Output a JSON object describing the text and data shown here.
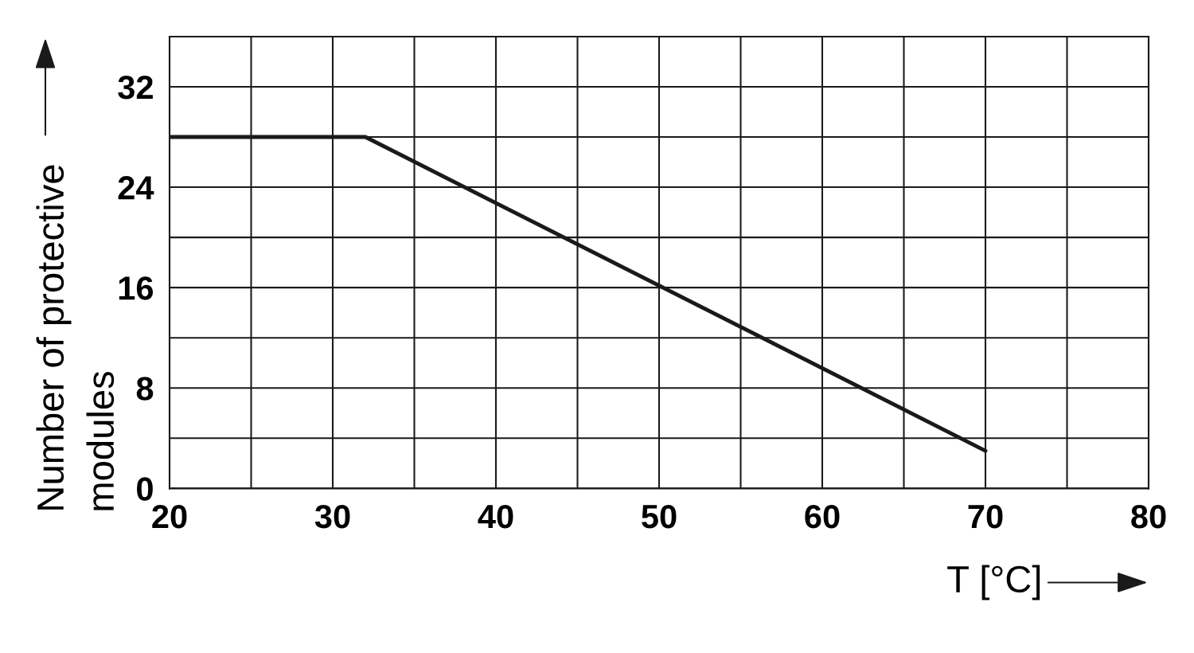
{
  "chart_data": {
    "type": "line",
    "xlabel": "T [°C]",
    "ylabel": "Number of protective modules",
    "x": [
      20,
      32,
      70
    ],
    "series": [
      {
        "color": "#1a1a1a",
        "values": [
          28,
          28,
          3
        ]
      }
    ],
    "xlim": [
      20,
      80
    ],
    "ylim": [
      0,
      36
    ],
    "xticks": [
      20,
      {
        "value": 25,
        "label": null
      },
      30,
      {
        "value": 35,
        "label": null
      },
      40,
      {
        "value": 45,
        "label": null
      },
      50,
      {
        "value": 55,
        "label": null
      },
      60,
      {
        "value": 65,
        "label": null
      },
      70,
      {
        "value": 75,
        "label": null
      },
      80
    ],
    "yticks": [
      0,
      {
        "value": 4,
        "label": null
      },
      8,
      {
        "value": 12,
        "label": null
      },
      16,
      {
        "value": 20,
        "label": null
      },
      24,
      {
        "value": 28,
        "label": null
      },
      32,
      {
        "value": 36,
        "label": null
      }
    ],
    "grid": true,
    "legend": false,
    "marker": "none",
    "line_style": "solid"
  }
}
